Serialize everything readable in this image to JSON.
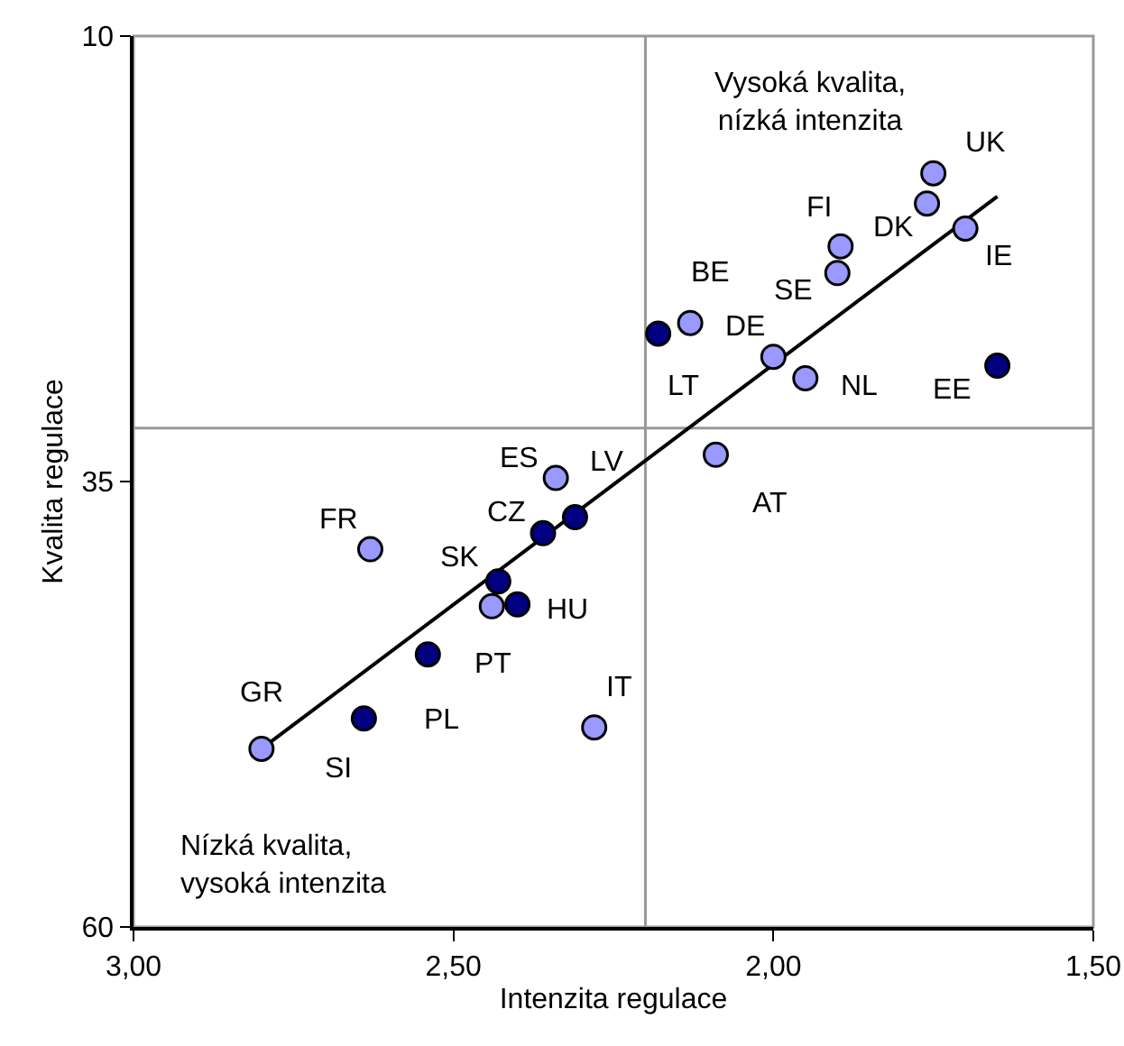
{
  "chart_data": {
    "type": "scatter",
    "xlabel": "Intenzita regulace",
    "ylabel": "Kvalita regulace",
    "xlim": [
      3,
      1.5
    ],
    "xticks": [
      {
        "value": 3,
        "label": "3,00"
      },
      {
        "value": 2.5,
        "label": "2,50"
      },
      {
        "value": 2,
        "label": "2,00"
      },
      {
        "value": 1.5,
        "label": "1,50"
      }
    ],
    "ylim": [
      60,
      10
    ],
    "yticks": [
      10,
      35,
      60
    ],
    "grid": false,
    "marker": "circle",
    "series": [
      {
        "color": "#9999ff",
        "x": [
          1.75,
          1.76,
          1.7,
          1.895,
          1.9,
          2.13,
          2.0,
          1.95,
          2.09,
          2.34,
          2.63,
          2.44,
          2.28,
          2.8
        ],
        "values": [
          17.7,
          19.4,
          20.8,
          21.8,
          23.3,
          26.1,
          28.0,
          29.2,
          33.5,
          34.8,
          38.8,
          42.0,
          48.8,
          50.0
        ]
      },
      {
        "color": "#000080",
        "x": [
          2.18,
          1.65,
          2.31,
          2.36,
          2.43,
          2.4,
          2.54,
          2.64
        ],
        "values": [
          26.7,
          28.5,
          37.0,
          37.9,
          40.6,
          41.9,
          44.7,
          48.3
        ]
      },
      {
        "type": "line",
        "color": "#000000",
        "marker": "none",
        "line_style": "solid",
        "x": [
          2.8,
          1.65
        ],
        "values": [
          50.0,
          19.0
        ]
      }
    ],
    "ref_lines": [
      {
        "axis": "x",
        "value": 2.2,
        "color": "#999999"
      },
      {
        "axis": "y",
        "value": 32,
        "color": "#999999"
      }
    ],
    "annotations": [
      "Vysoká kvalita,\nnízká intenzita",
      "Nízká kvalita,\nvysoká intenzita",
      {
        "text": "UK",
        "x": 1.75,
        "y": 17.7
      },
      {
        "text": "FI",
        "x": 1.895,
        "y": 21.8
      },
      {
        "text": "DK",
        "x": 1.76,
        "y": 19.4
      },
      {
        "text": "IE",
        "x": 1.7,
        "y": 20.8
      },
      {
        "text": "SE",
        "x": 1.9,
        "y": 23.3
      },
      {
        "text": "BE",
        "x": 2.13,
        "y": 26.1
      },
      {
        "text": "DE",
        "x": 2.0,
        "y": 28.0
      },
      {
        "text": "LT",
        "x": 2.18,
        "y": 26.7
      },
      {
        "text": "NL",
        "x": 1.95,
        "y": 29.2
      },
      {
        "text": "EE",
        "x": 1.65,
        "y": 28.5
      },
      {
        "text": "ES",
        "x": 2.34,
        "y": 34.8
      },
      {
        "text": "LV",
        "x": 2.31,
        "y": 37.0
      },
      {
        "text": "AT",
        "x": 2.09,
        "y": 33.5
      },
      {
        "text": "CZ",
        "x": 2.36,
        "y": 37.9
      },
      {
        "text": "FR",
        "x": 2.63,
        "y": 38.8
      },
      {
        "text": "SK",
        "x": 2.43,
        "y": 40.6
      },
      {
        "text": "HU",
        "x": 2.4,
        "y": 41.9
      },
      {
        "text": "PT",
        "x": 2.54,
        "y": 44.7
      },
      {
        "text": "GR",
        "x": 2.8,
        "y": 50.0
      },
      {
        "text": "IT",
        "x": 2.28,
        "y": 48.8
      },
      {
        "text": "PL",
        "x": 2.64,
        "y": 48.3
      },
      {
        "text": "SI",
        "x": 2.64,
        "y": 48.3
      }
    ]
  }
}
